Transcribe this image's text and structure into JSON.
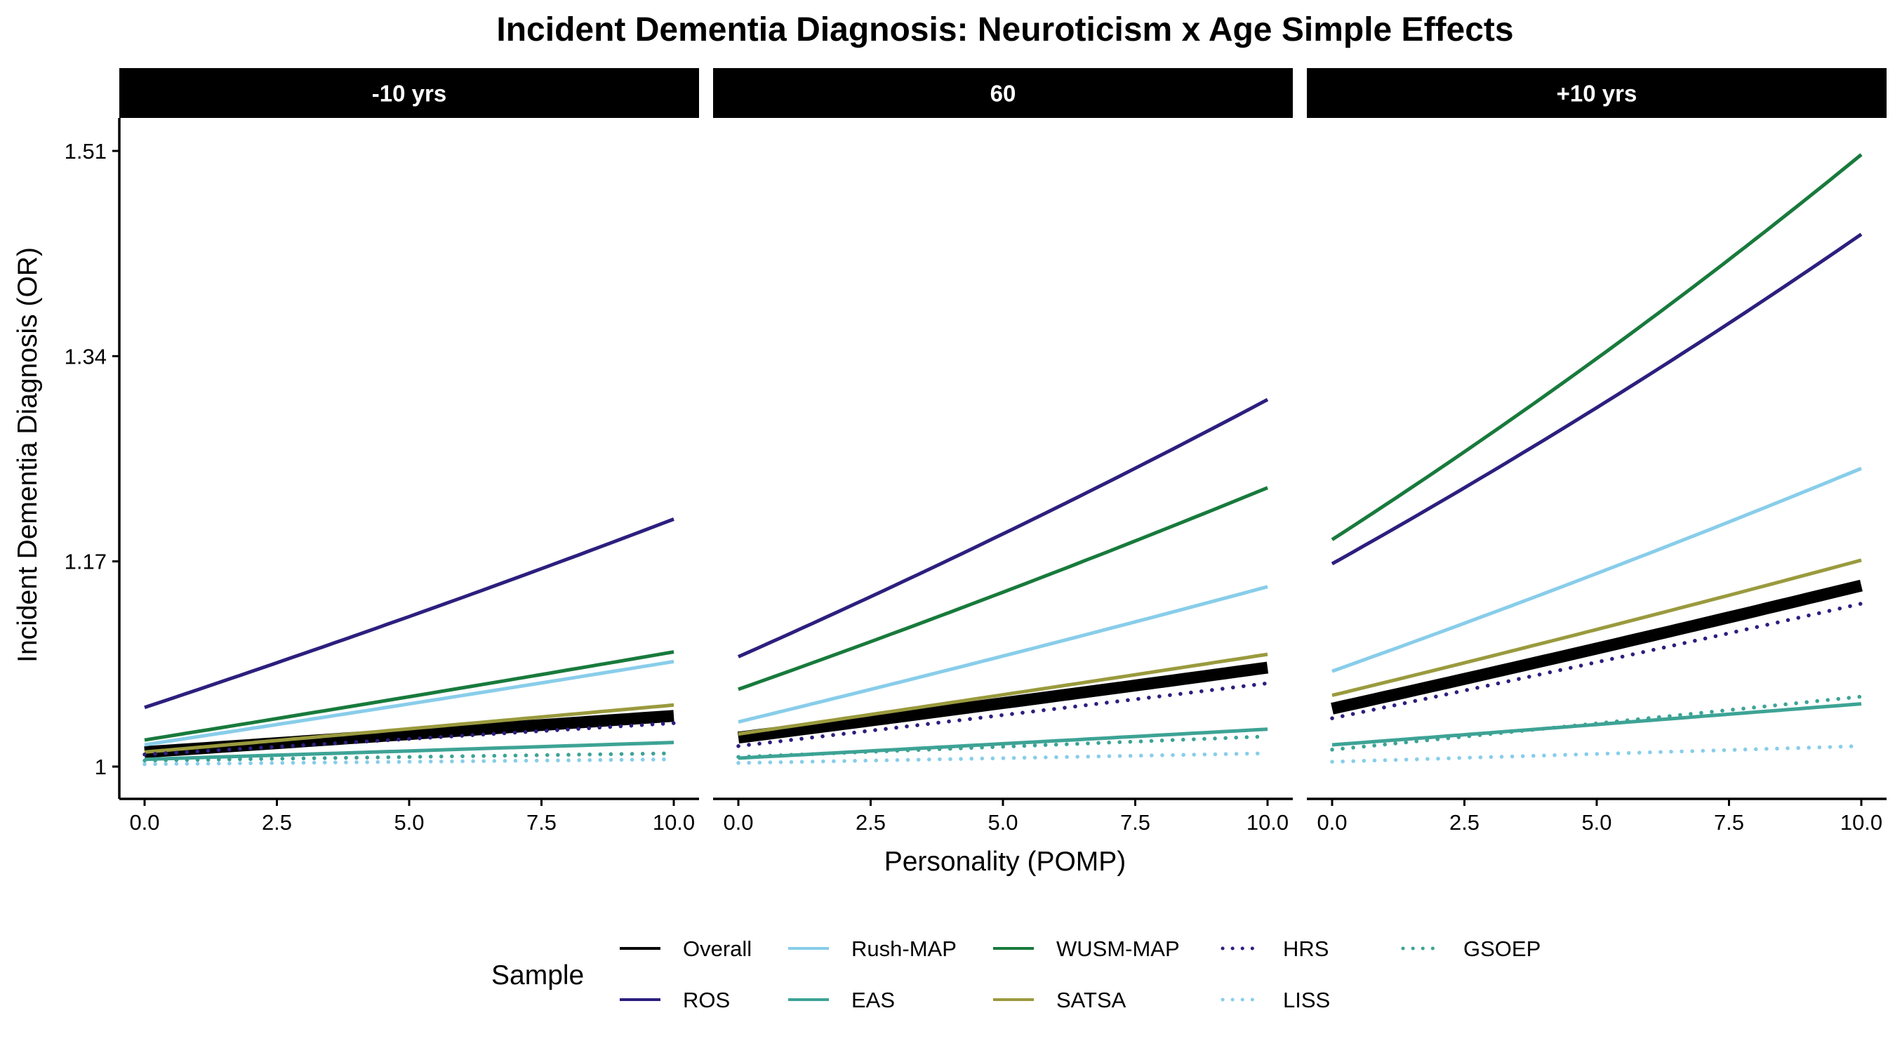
{
  "title": "Incident Dementia Diagnosis: Neuroticism x Age Simple Effects",
  "xlabel": "Personality (POMP)",
  "ylabel": "Incident Dementia Diagnosis (OR)",
  "legend_title": "Sample",
  "colors": {
    "Overall": "#000000",
    "ROS": "#2c1f7e",
    "Rush-MAP": "#88cdea",
    "EAS": "#3da395",
    "WUSM-MAP": "#187a3c",
    "SATSA": "#9a9a3e",
    "HRS": "#2c1f7e",
    "LISS": "#88cdea",
    "GSOEP": "#3da395"
  },
  "chart_data": {
    "type": "line",
    "facets": [
      "-10 yrs",
      "60",
      "+10 yrs"
    ],
    "x_ticks": [
      "0.0",
      "2.5",
      "5.0",
      "7.5",
      "10.0"
    ],
    "y_ticks": [
      "1",
      "1.17",
      "1.34",
      "1.51"
    ],
    "xlim": [
      0,
      10
    ],
    "ylim": [
      1.0,
      1.51
    ],
    "legend_position": "bottom",
    "grid": false,
    "x": [
      0,
      10
    ],
    "panels": [
      {
        "facet": "-10 yrs",
        "series": [
          {
            "name": "Overall",
            "style": "solid",
            "values": [
              1.012,
              1.042
            ]
          },
          {
            "name": "ROS",
            "style": "solid",
            "values": [
              1.049,
              1.205
            ]
          },
          {
            "name": "Rush-MAP",
            "style": "solid",
            "values": [
              1.018,
              1.087
            ]
          },
          {
            "name": "EAS",
            "style": "solid",
            "values": [
              1.006,
              1.02
            ]
          },
          {
            "name": "WUSM-MAP",
            "style": "solid",
            "values": [
              1.022,
              1.095
            ]
          },
          {
            "name": "SATSA",
            "style": "solid",
            "values": [
              1.012,
              1.051
            ]
          },
          {
            "name": "HRS",
            "style": "dotted",
            "values": [
              1.01,
              1.036
            ]
          },
          {
            "name": "LISS",
            "style": "dotted",
            "values": [
              1.002,
              1.006
            ]
          },
          {
            "name": "GSOEP",
            "style": "dotted",
            "values": [
              1.005,
              1.011
            ]
          }
        ]
      },
      {
        "facet": "60",
        "series": [
          {
            "name": "Overall",
            "style": "solid",
            "values": [
              1.024,
              1.082
            ]
          },
          {
            "name": "ROS",
            "style": "solid",
            "values": [
              1.091,
              1.304
            ]
          },
          {
            "name": "Rush-MAP",
            "style": "solid",
            "values": [
              1.037,
              1.149
            ]
          },
          {
            "name": "EAS",
            "style": "solid",
            "values": [
              1.007,
              1.031
            ]
          },
          {
            "name": "WUSM-MAP",
            "style": "solid",
            "values": [
              1.064,
              1.231
            ]
          },
          {
            "name": "SATSA",
            "style": "solid",
            "values": [
              1.027,
              1.093
            ]
          },
          {
            "name": "HRS",
            "style": "dotted",
            "values": [
              1.017,
              1.069
            ]
          },
          {
            "name": "LISS",
            "style": "dotted",
            "values": [
              1.003,
              1.011
            ]
          },
          {
            "name": "GSOEP",
            "style": "dotted",
            "values": [
              1.008,
              1.025
            ]
          }
        ]
      },
      {
        "facet": "+10 yrs",
        "series": [
          {
            "name": "Overall",
            "style": "solid",
            "values": [
              1.048,
              1.15
            ]
          },
          {
            "name": "ROS",
            "style": "solid",
            "values": [
              1.168,
              1.441
            ]
          },
          {
            "name": "Rush-MAP",
            "style": "solid",
            "values": [
              1.079,
              1.247
            ]
          },
          {
            "name": "EAS",
            "style": "solid",
            "values": [
              1.018,
              1.052
            ]
          },
          {
            "name": "WUSM-MAP",
            "style": "solid",
            "values": [
              1.188,
              1.507
            ]
          },
          {
            "name": "SATSA",
            "style": "solid",
            "values": [
              1.059,
              1.171
            ]
          },
          {
            "name": "HRS",
            "style": "dotted",
            "values": [
              1.04,
              1.135
            ]
          },
          {
            "name": "LISS",
            "style": "dotted",
            "values": [
              1.004,
              1.017
            ]
          },
          {
            "name": "GSOEP",
            "style": "dotted",
            "values": [
              1.014,
              1.058
            ]
          }
        ]
      }
    ]
  }
}
